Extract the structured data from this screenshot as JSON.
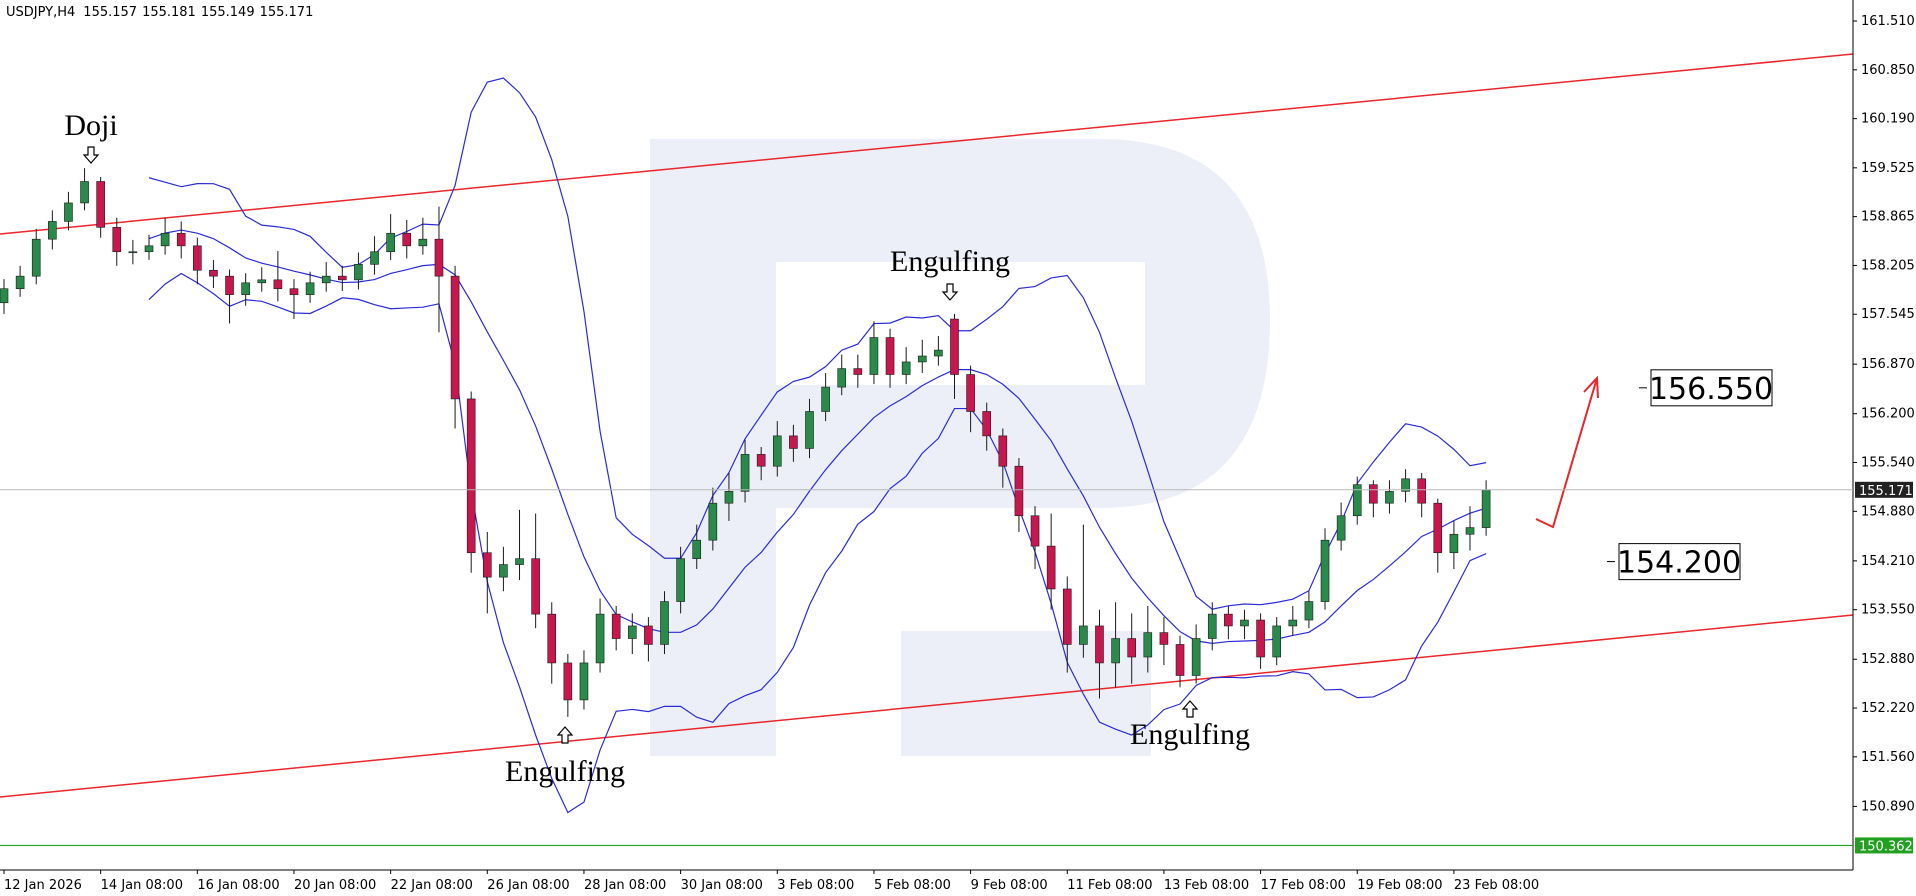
{
  "chart_data": {
    "type": "candlestick",
    "header": {
      "symbol": "USDJPY,H4",
      "ohlc": [
        155.157,
        155.181,
        155.149,
        155.171
      ]
    },
    "categories": [
      "12 Jan 2026",
      null,
      null,
      null,
      null,
      null,
      "14 Jan 08:00",
      null,
      null,
      null,
      null,
      null,
      "16 Jan 08:00",
      null,
      null,
      null,
      null,
      null,
      "20 Jan 08:00",
      null,
      null,
      null,
      null,
      null,
      "22 Jan 08:00",
      null,
      null,
      null,
      null,
      null,
      "26 Jan 08:00",
      null,
      null,
      null,
      null,
      null,
      "28 Jan 08:00",
      null,
      null,
      null,
      null,
      null,
      "30 Jan 08:00",
      null,
      null,
      null,
      null,
      null,
      "3 Feb 08:00",
      null,
      null,
      null,
      null,
      null,
      "5 Feb 08:00",
      null,
      null,
      null,
      null,
      null,
      "9 Feb 08:00",
      null,
      null,
      null,
      null,
      null,
      "11 Feb 08:00",
      null,
      null,
      null,
      null,
      null,
      "13 Feb 08:00",
      null,
      null,
      null,
      null,
      null,
      "17 Feb 08:00",
      null,
      null,
      null,
      null,
      null,
      "19 Feb 08:00",
      null,
      null,
      null,
      null,
      null,
      "23 Feb 08:00",
      null,
      null
    ],
    "open": [
      157.7,
      157.89,
      158.06,
      158.56,
      158.8,
      159.05,
      159.34,
      158.72,
      158.39,
      158.39,
      158.47,
      158.64,
      158.47,
      158.14,
      158.06,
      157.81,
      157.97,
      158.01,
      157.89,
      157.81,
      157.97,
      158.06,
      158.01,
      158.22,
      158.39,
      158.64,
      158.47,
      158.56,
      158.06,
      156.4,
      154.32,
      153.99,
      154.16,
      154.24,
      153.49,
      152.83,
      152.33,
      152.83,
      153.49,
      153.16,
      153.33,
      153.08,
      153.66,
      154.24,
      154.49,
      154.99,
      155.15,
      155.65,
      155.49,
      155.9,
      155.73,
      156.23,
      156.56,
      156.81,
      156.73,
      157.23,
      156.73,
      156.9,
      156.98,
      157.48,
      156.73,
      156.23,
      155.9,
      155.49,
      154.82,
      154.41,
      153.83,
      153.08,
      153.33,
      152.83,
      153.16,
      152.91,
      153.24,
      153.08,
      152.66,
      153.16,
      153.49,
      153.33,
      153.41,
      152.91,
      153.33,
      153.41,
      153.66,
      154.49,
      154.82,
      155.24,
      154.99,
      155.15,
      155.32,
      154.99,
      154.32,
      154.57,
      154.66
    ],
    "high": [
      158.02,
      158.2,
      158.7,
      158.95,
      159.2,
      159.52,
      159.4,
      158.85,
      158.55,
      158.62,
      158.85,
      158.8,
      158.58,
      158.28,
      158.15,
      158.1,
      158.18,
      158.4,
      158.02,
      158.12,
      158.25,
      158.2,
      158.38,
      158.6,
      158.9,
      158.82,
      158.85,
      159.0,
      158.2,
      156.5,
      154.6,
      154.4,
      154.9,
      154.85,
      153.65,
      152.95,
      153.0,
      153.7,
      153.6,
      153.5,
      153.45,
      153.8,
      154.4,
      154.7,
      155.2,
      155.4,
      155.85,
      155.75,
      156.1,
      156.05,
      156.4,
      156.75,
      157.0,
      157.0,
      157.45,
      157.35,
      157.1,
      157.2,
      157.25,
      157.55,
      156.85,
      156.35,
      156.0,
      155.6,
      154.95,
      154.85,
      154.0,
      154.7,
      153.55,
      153.65,
      153.5,
      153.6,
      153.45,
      153.2,
      153.35,
      153.65,
      153.6,
      153.55,
      153.5,
      153.45,
      153.6,
      153.8,
      154.65,
      155.0,
      155.35,
      155.3,
      155.3,
      155.45,
      155.4,
      155.05,
      154.75,
      154.95,
      155.3
    ],
    "low": [
      157.55,
      157.78,
      157.95,
      158.42,
      158.68,
      158.95,
      158.58,
      158.2,
      158.22,
      158.28,
      158.35,
      158.3,
      157.95,
      157.9,
      157.42,
      157.66,
      157.85,
      157.72,
      157.48,
      157.7,
      157.85,
      157.86,
      157.88,
      158.08,
      158.28,
      158.3,
      158.35,
      157.3,
      156.0,
      154.05,
      153.5,
      153.8,
      153.95,
      153.3,
      152.55,
      152.1,
      152.2,
      152.7,
      153.0,
      152.95,
      152.85,
      152.95,
      153.5,
      154.1,
      154.35,
      154.75,
      155.0,
      155.3,
      155.35,
      155.55,
      155.6,
      156.1,
      156.45,
      156.55,
      156.6,
      156.55,
      156.6,
      156.75,
      156.85,
      156.4,
      155.95,
      155.7,
      155.2,
      154.6,
      154.1,
      153.55,
      152.7,
      152.9,
      152.35,
      152.5,
      152.55,
      152.7,
      152.8,
      152.5,
      152.55,
      153.0,
      153.15,
      153.15,
      152.75,
      152.8,
      153.2,
      153.3,
      153.55,
      154.35,
      154.7,
      154.8,
      154.85,
      155.0,
      154.8,
      154.05,
      154.1,
      154.35,
      154.55
    ],
    "close": [
      157.89,
      158.06,
      158.56,
      158.8,
      159.05,
      159.34,
      158.72,
      158.39,
      158.39,
      158.47,
      158.64,
      158.47,
      158.14,
      158.06,
      157.81,
      157.97,
      158.01,
      157.89,
      157.81,
      157.97,
      158.06,
      158.01,
      158.22,
      158.39,
      158.64,
      158.47,
      158.56,
      158.06,
      156.4,
      154.32,
      153.99,
      154.16,
      154.24,
      153.49,
      152.83,
      152.33,
      152.83,
      153.49,
      153.16,
      153.33,
      153.08,
      153.66,
      154.24,
      154.49,
      154.99,
      155.15,
      155.65,
      155.49,
      155.9,
      155.73,
      156.23,
      156.56,
      156.81,
      156.73,
      157.23,
      156.73,
      156.9,
      156.98,
      157.06,
      156.73,
      156.23,
      155.9,
      155.49,
      154.82,
      154.41,
      153.83,
      153.08,
      153.33,
      152.83,
      153.16,
      152.91,
      153.24,
      153.08,
      152.66,
      153.16,
      153.49,
      153.33,
      153.41,
      152.91,
      153.33,
      153.41,
      153.66,
      154.49,
      154.82,
      155.24,
      154.99,
      155.15,
      155.32,
      154.99,
      154.32,
      154.57,
      154.66,
      155.17
    ],
    "up_color": "#2a8a4a",
    "down_color": "#c8174e",
    "ylim": [
      150.03,
      161.74
    ],
    "yticks": [
      {
        "value": 161.51,
        "label": "161.510"
      },
      {
        "value": 160.85,
        "label": "160.850"
      },
      {
        "value": 160.19,
        "label": "160.190"
      },
      159.525,
      158.865,
      158.205,
      157.545,
      {
        "value": 156.87,
        "label": "156.870"
      },
      {
        "value": 156.2,
        "label": "156.200"
      },
      {
        "value": 155.54,
        "label": "155.540"
      },
      {
        "value": 154.88,
        "label": "154.880"
      },
      {
        "value": 154.21,
        "label": "154.210"
      },
      {
        "value": 153.55,
        "label": "153.550"
      },
      {
        "value": 152.88,
        "label": "152.880"
      },
      {
        "value": 152.22,
        "label": "152.220"
      },
      {
        "value": 151.56,
        "label": "151.560"
      },
      {
        "value": 150.89,
        "label": "150.890"
      }
    ],
    "current_price": 155.171,
    "support_level": 150.362,
    "targets": [
      {
        "value": 156.55,
        "label": "156.550"
      },
      {
        "value": 154.2,
        "label": "154.200"
      }
    ],
    "annotations": [
      {
        "text": "Doji"
      },
      {
        "text": "Engulfing"
      },
      {
        "text": "Engulfing"
      },
      {
        "text": "Engulfing"
      }
    ]
  }
}
